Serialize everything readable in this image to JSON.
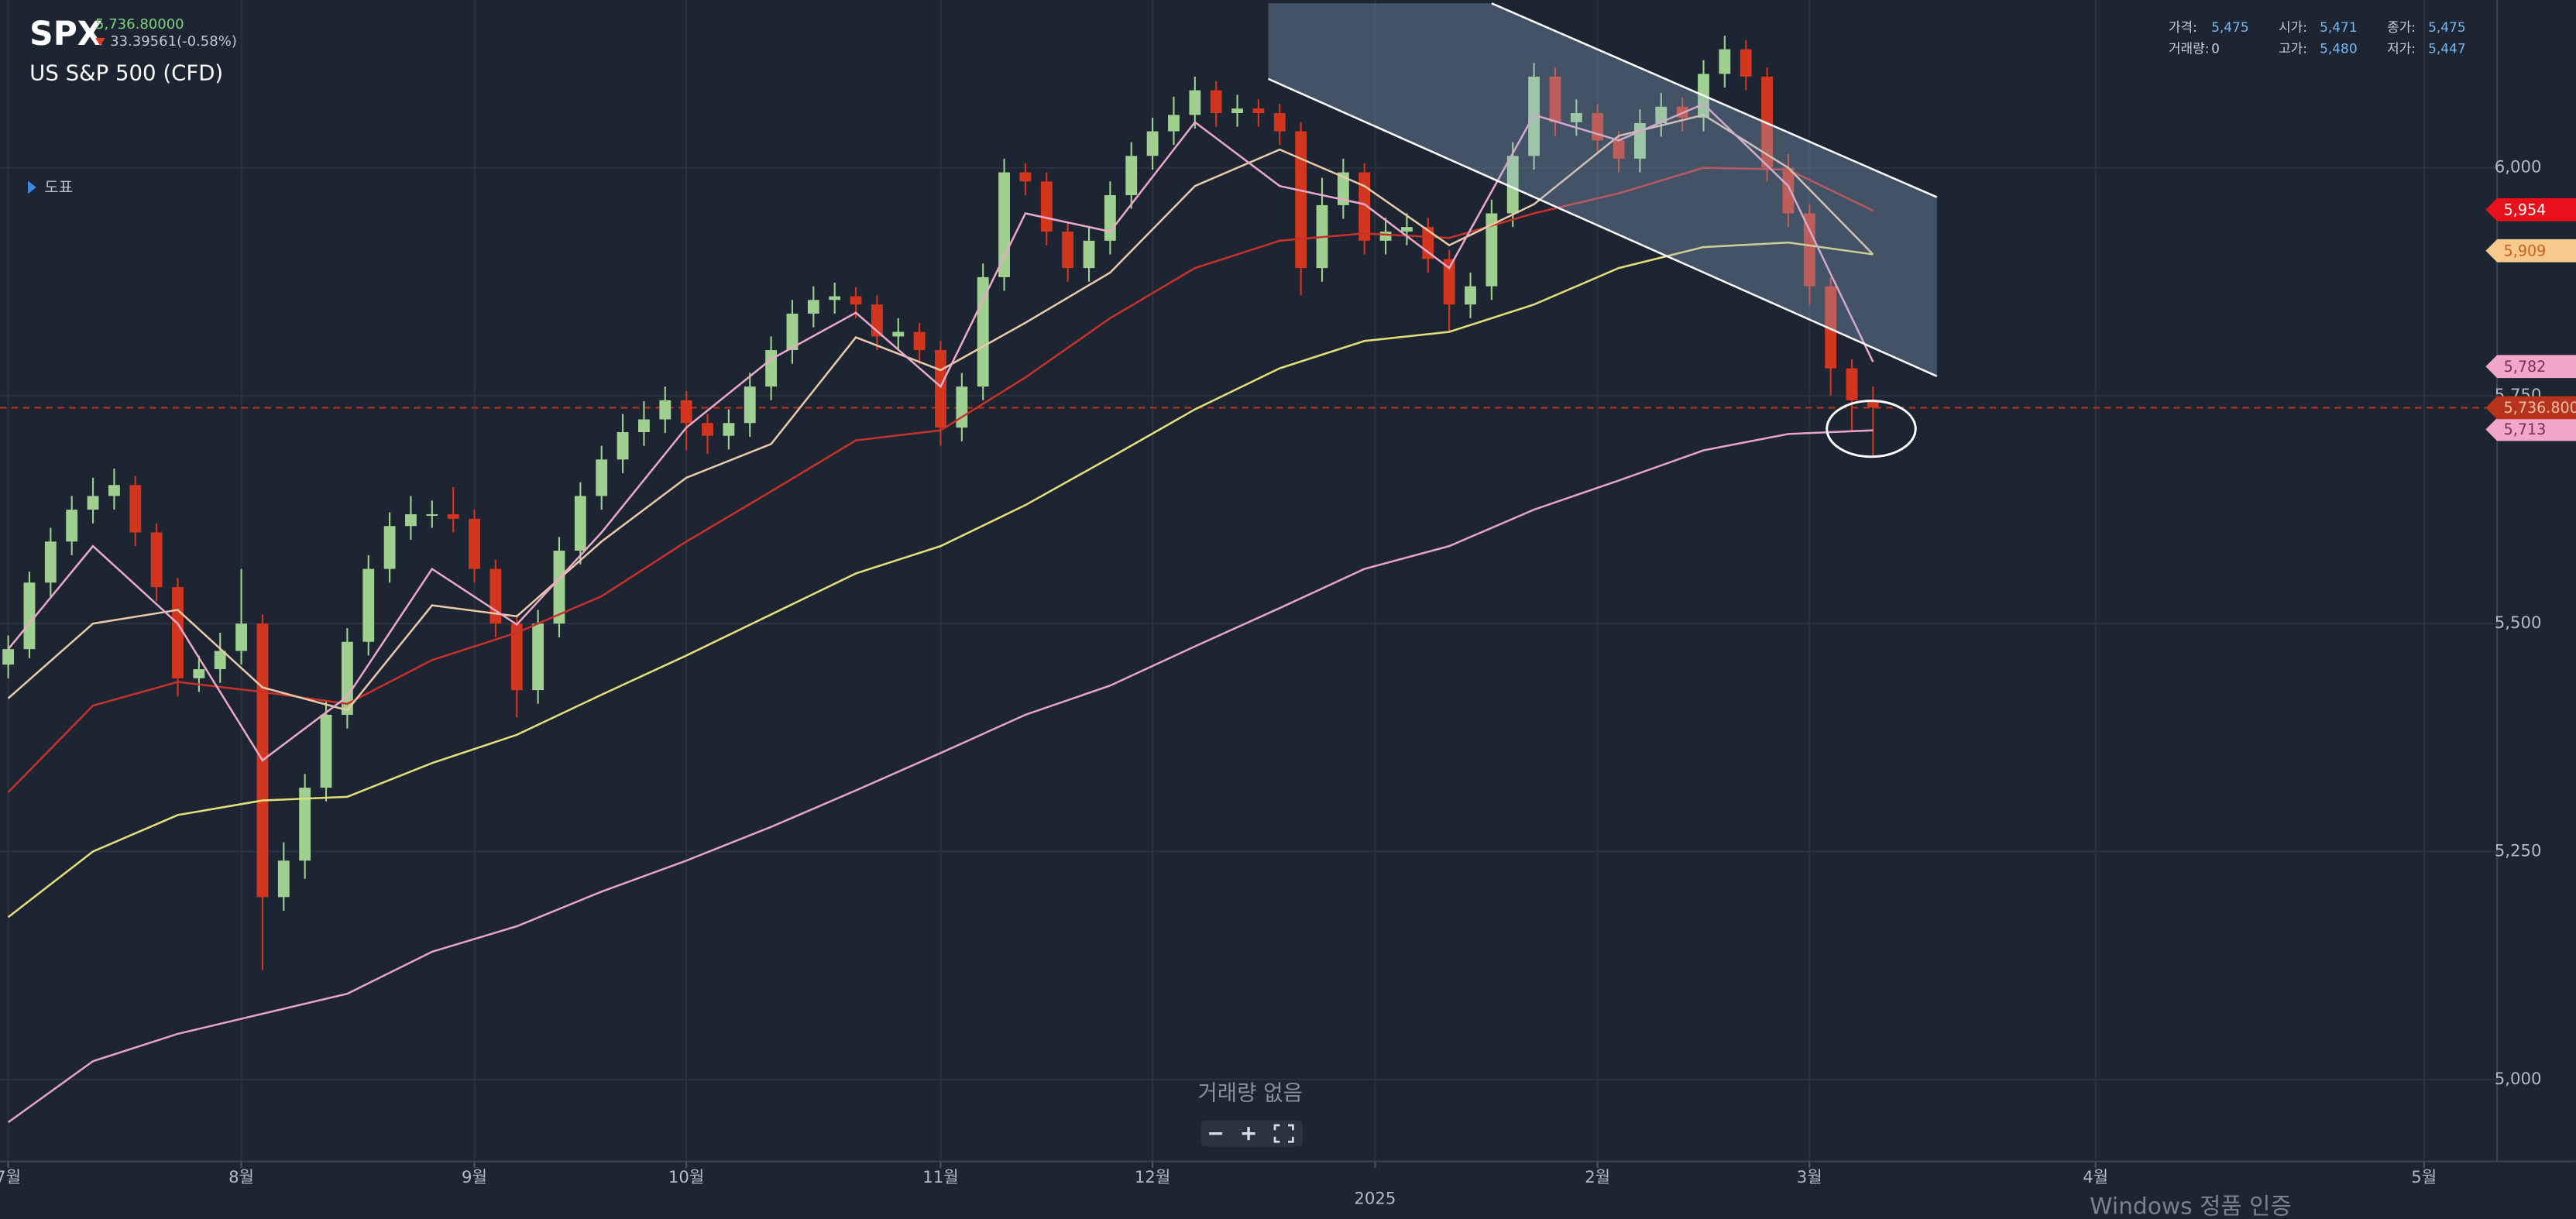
{
  "header": {
    "symbol": "SPX",
    "price": "5,736.80000",
    "change": "33.39561(-0.58%)",
    "name": "US S&P 500 (CFD)",
    "menu": "도표"
  },
  "info_panel": [
    {
      "label": "가격:",
      "value": "5,475"
    },
    {
      "label": "시가:",
      "value": "5,471"
    },
    {
      "label": "종가:",
      "value": "5,475"
    },
    {
      "label": "거래량:",
      "value": "0"
    },
    {
      "label": "고가:",
      "value": "5,480"
    },
    {
      "label": "저가:",
      "value": "5,447"
    }
  ],
  "volume_note": "거래량 없음",
  "watermark": "Windows 정품 인증",
  "chart_data": {
    "type": "candlestick",
    "xlim": [
      -0.775,
      234.9
    ],
    "ylim": [
      4910,
      6184
    ],
    "grid": true,
    "xticks": [
      {
        "value": 0,
        "label": "7월"
      },
      {
        "value": 22,
        "label": "8월"
      },
      {
        "value": 44,
        "label": "9월"
      },
      {
        "value": 64,
        "label": "10월"
      },
      {
        "value": 88,
        "label": "11월"
      },
      {
        "value": 108,
        "label": "12월"
      },
      {
        "value": 129,
        "label": "2025"
      },
      {
        "value": 150,
        "label": "2월"
      },
      {
        "value": 170,
        "label": "3월"
      },
      {
        "value": 197,
        "label": "4월"
      },
      {
        "value": 228,
        "label": "5월"
      }
    ],
    "yticks": [
      {
        "value": 5000,
        "label": "5,000"
      },
      {
        "value": 5250,
        "label": "5,250"
      },
      {
        "value": 5500,
        "label": "5,500"
      },
      {
        "value": 5750,
        "label": "5,750"
      },
      {
        "value": 6000,
        "label": "6,000"
      }
    ],
    "candles": {
      "up_color": "#9fd08f",
      "down_color": "#d2361f",
      "x": [
        0,
        2,
        4,
        6,
        8,
        10,
        12,
        14,
        16,
        18,
        20,
        22,
        24,
        26,
        28,
        30,
        32,
        34,
        36,
        38,
        40,
        42,
        44,
        46,
        48,
        50,
        52,
        54,
        56,
        58,
        60,
        62,
        64,
        66,
        68,
        70,
        72,
        74,
        76,
        78,
        80,
        82,
        84,
        86,
        88,
        90,
        92,
        94,
        96,
        98,
        100,
        102,
        104,
        106,
        108,
        110,
        112,
        114,
        116,
        118,
        120,
        122,
        124,
        126,
        128,
        130,
        132,
        134,
        136,
        138,
        140,
        142,
        144,
        146,
        148,
        150,
        152,
        154,
        156,
        158,
        160,
        162,
        164,
        166,
        168,
        170,
        172,
        174,
        176
      ],
      "open": [
        5455,
        5472,
        5545,
        5590,
        5625,
        5640,
        5652,
        5600,
        5540,
        5440,
        5450,
        5470,
        5500,
        5200,
        5240,
        5320,
        5400,
        5480,
        5560,
        5607,
        5620,
        5620,
        5615,
        5560,
        5500,
        5427,
        5500,
        5580,
        5640,
        5680,
        5710,
        5724,
        5745,
        5720,
        5706,
        5720,
        5760,
        5800,
        5840,
        5855,
        5859,
        5850,
        5815,
        5820,
        5800,
        5715,
        5760,
        5880,
        5995,
        5985,
        5930,
        5890,
        5920,
        5970,
        6013,
        6040,
        6058,
        6085,
        6060,
        6065,
        6060,
        6040,
        5890,
        5959,
        5995,
        5920,
        5930,
        5935,
        5900,
        5850,
        5870,
        5950,
        6013,
        6100,
        6050,
        6060,
        6030,
        6010,
        6049,
        6067,
        6055,
        6103,
        6130,
        6100,
        6000,
        5950,
        5870,
        5780,
        5745
      ],
      "high": [
        5487,
        5557,
        5605,
        5640,
        5660,
        5670,
        5662,
        5610,
        5550,
        5465,
        5490,
        5560,
        5510,
        5260,
        5335,
        5415,
        5495,
        5575,
        5622,
        5640,
        5635,
        5650,
        5625,
        5570,
        5510,
        5515,
        5595,
        5655,
        5695,
        5730,
        5744,
        5760,
        5755,
        5730,
        5735,
        5775,
        5815,
        5855,
        5870,
        5874,
        5869,
        5860,
        5835,
        5830,
        5810,
        5775,
        5895,
        6010,
        6005,
        5995,
        5940,
        5935,
        5985,
        6028,
        6055,
        6078,
        6100,
        6095,
        6080,
        6075,
        6070,
        6050,
        5989,
        6010,
        6005,
        5945,
        5950,
        5945,
        5910,
        5885,
        5965,
        6028,
        6115,
        6110,
        6075,
        6070,
        6040,
        6064,
        6082,
        6077,
        6118,
        6145,
        6140,
        6110,
        6015,
        5960,
        5880,
        5790,
        5760
      ],
      "low": [
        5440,
        5462,
        5530,
        5575,
        5610,
        5625,
        5585,
        5525,
        5420,
        5425,
        5435,
        5455,
        5120,
        5185,
        5220,
        5305,
        5385,
        5465,
        5545,
        5592,
        5605,
        5600,
        5545,
        5485,
        5397,
        5412,
        5485,
        5565,
        5625,
        5665,
        5695,
        5709,
        5690,
        5686,
        5691,
        5705,
        5745,
        5785,
        5825,
        5840,
        5835,
        5800,
        5800,
        5785,
        5695,
        5700,
        5745,
        5865,
        5970,
        5915,
        5875,
        5875,
        5905,
        5955,
        5998,
        6025,
        6043,
        6045,
        6045,
        6045,
        6025,
        5860,
        5875,
        5944,
        5905,
        5905,
        5915,
        5885,
        5820,
        5835,
        5855,
        5935,
        5998,
        6035,
        6035,
        6015,
        5995,
        5995,
        6034,
        6040,
        6040,
        6088,
        6085,
        5985,
        5935,
        5850,
        5750,
        5710,
        5682
      ],
      "close": [
        5472,
        5545,
        5590,
        5625,
        5640,
        5652,
        5600,
        5540,
        5440,
        5450,
        5470,
        5500,
        5200,
        5240,
        5320,
        5400,
        5480,
        5560,
        5607,
        5620,
        5620,
        5615,
        5560,
        5500,
        5427,
        5500,
        5580,
        5640,
        5680,
        5710,
        5724,
        5745,
        5720,
        5706,
        5720,
        5760,
        5800,
        5840,
        5855,
        5859,
        5850,
        5815,
        5820,
        5800,
        5715,
        5760,
        5880,
        5995,
        5985,
        5930,
        5890,
        5920,
        5970,
        6013,
        6040,
        6058,
        6085,
        6060,
        6065,
        6060,
        6040,
        5890,
        5959,
        5995,
        5920,
        5930,
        5935,
        5900,
        5850,
        5870,
        5950,
        6013,
        6100,
        6050,
        6060,
        6030,
        6010,
        6049,
        6067,
        6055,
        6103,
        6130,
        6100,
        6000,
        5950,
        5870,
        5780,
        5745,
        5737
      ]
    },
    "lines": [
      {
        "color": "#e6a2c8",
        "x": [
          0,
          8,
          16,
          24,
          32,
          40,
          48,
          56,
          64,
          72,
          80,
          88,
          96,
          104,
          112,
          120,
          128,
          136,
          144,
          152,
          160,
          168,
          176
        ],
        "values": [
          4953,
          5020,
          5050,
          5072,
          5094,
          5140,
          5168,
          5206,
          5240,
          5277,
          5317,
          5358,
          5400,
          5432,
          5475,
          5517,
          5560,
          5585,
          5625,
          5657,
          5690,
          5708,
          5712
        ]
      },
      {
        "color": "#e4de78",
        "x": [
          0,
          8,
          16,
          24,
          32,
          40,
          48,
          56,
          64,
          72,
          80,
          88,
          96,
          104,
          112,
          120,
          128,
          136,
          144,
          152,
          160,
          168,
          176
        ],
        "values": [
          5178,
          5250,
          5290,
          5306,
          5310,
          5347,
          5378,
          5422,
          5465,
          5510,
          5555,
          5585,
          5630,
          5682,
          5735,
          5780,
          5810,
          5820,
          5850,
          5890,
          5913,
          5918,
          5905
        ]
      },
      {
        "color": "#c8302a",
        "x": [
          0,
          8,
          16,
          24,
          32,
          40,
          48,
          56,
          64,
          72,
          80,
          88,
          96,
          104,
          112,
          120,
          128,
          136,
          144,
          152,
          160,
          168,
          176
        ],
        "values": [
          5315,
          5410,
          5436,
          5425,
          5412,
          5460,
          5490,
          5530,
          5590,
          5645,
          5701,
          5712,
          5770,
          5835,
          5890,
          5920,
          5928,
          5923,
          5950,
          5972,
          6000,
          5998,
          5953
        ]
      },
      {
        "color": "#e8c9a8",
        "x": [
          0,
          8,
          16,
          24,
          32,
          40,
          48,
          56,
          64,
          72,
          80,
          88,
          96,
          104,
          112,
          120,
          128,
          136,
          144,
          152,
          160,
          168,
          176
        ],
        "values": [
          5418,
          5500,
          5515,
          5430,
          5405,
          5520,
          5508,
          5590,
          5660,
          5697,
          5814,
          5778,
          5830,
          5885,
          5980,
          6020,
          5980,
          5915,
          5960,
          6035,
          6058,
          6000,
          5905
        ]
      },
      {
        "color": "#e9a8c8",
        "x": [
          0,
          8,
          16,
          24,
          32,
          40,
          48,
          56,
          64,
          72,
          80,
          88,
          96,
          104,
          112,
          120,
          128,
          136,
          144,
          152,
          160,
          168,
          176
        ],
        "values": [
          5472,
          5585,
          5500,
          5350,
          5420,
          5560,
          5499,
          5600,
          5715,
          5790,
          5841,
          5760,
          5950,
          5930,
          6050,
          5980,
          5960,
          5890,
          6058,
          6030,
          6070,
          5980,
          5787
        ]
      }
    ],
    "price_tags": [
      {
        "value": 5954,
        "label": "5,954",
        "color": "#e8101a",
        "text_color": "#ffffff"
      },
      {
        "value": 5909,
        "label": "5,909",
        "color": "#f7c98d",
        "text_color": "#c9621c"
      },
      {
        "value": 5782,
        "label": "5,782",
        "color": "#f2a7c9",
        "text_color": "#7a3050"
      },
      {
        "value": 5713,
        "label": "5,713",
        "color": "#f2a7c9",
        "text_color": "#7a3050"
      }
    ],
    "last_price": {
      "value": 5736.8,
      "label": "5,736.8000",
      "color": "#b8331c",
      "text_color": "#f6c0a8"
    }
  }
}
